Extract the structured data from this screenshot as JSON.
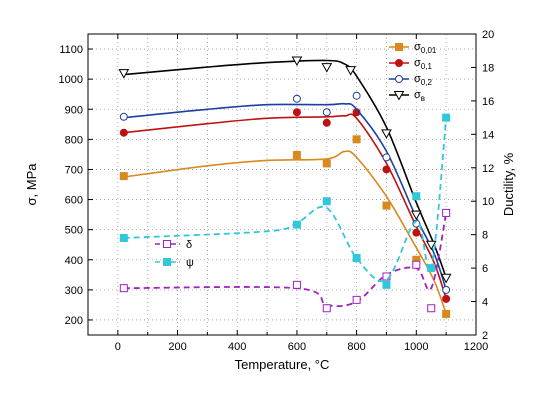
{
  "chart_data": {
    "type": "line",
    "xlabel": "Temperature, °C",
    "ylabel_left": "σ, MPa",
    "ylabel_right": "Ductility, %",
    "xlim": [
      -100,
      1200
    ],
    "ylim_left": [
      150,
      1150
    ],
    "ylim_right": [
      2,
      20
    ],
    "x_ticks": [
      0,
      200,
      400,
      600,
      800,
      1000,
      1200
    ],
    "y_left_ticks": [
      200,
      300,
      400,
      500,
      600,
      700,
      800,
      900,
      1000,
      1100
    ],
    "y_right_ticks": [
      2,
      4,
      6,
      8,
      10,
      12,
      14,
      16,
      18,
      20
    ],
    "grid": "dotted",
    "legend_upper_position": "top-right",
    "legend_lower_position": "lower-left",
    "series": [
      {
        "name": "σ",
        "sub": "0,01",
        "axis": "left",
        "color": "#d98a1f",
        "marker": "square-filled",
        "line": "solid",
        "x": [
          20,
          600,
          700,
          800,
          900,
          1000,
          1100
        ],
        "y": [
          678,
          748,
          720,
          800,
          580,
          400,
          220
        ],
        "curve": [
          [
            20,
            675
          ],
          [
            300,
            712
          ],
          [
            500,
            730
          ],
          [
            700,
            735
          ],
          [
            760,
            760
          ],
          [
            800,
            740
          ],
          [
            900,
            610
          ],
          [
            1000,
            440
          ],
          [
            1060,
            330
          ],
          [
            1100,
            220
          ]
        ]
      },
      {
        "name": "σ",
        "sub": "0,1",
        "axis": "left",
        "color": "#c01010",
        "marker": "circle-filled",
        "line": "solid",
        "x": [
          20,
          600,
          700,
          800,
          900,
          1000,
          1100
        ],
        "y": [
          822,
          890,
          855,
          890,
          700,
          490,
          270
        ],
        "curve": [
          [
            20,
            822
          ],
          [
            300,
            852
          ],
          [
            500,
            870
          ],
          [
            700,
            875
          ],
          [
            760,
            878
          ],
          [
            800,
            870
          ],
          [
            900,
            720
          ],
          [
            1000,
            510
          ],
          [
            1060,
            390
          ],
          [
            1100,
            270
          ]
        ]
      },
      {
        "name": "σ",
        "sub": "0,2",
        "axis": "left",
        "color": "#1f3fa0",
        "marker": "circle-open",
        "line": "solid",
        "x": [
          20,
          600,
          700,
          800,
          900,
          1000,
          1100
        ],
        "y": [
          875,
          935,
          890,
          945,
          740,
          520,
          300
        ],
        "curve": [
          [
            20,
            872
          ],
          [
            300,
            900
          ],
          [
            500,
            915
          ],
          [
            700,
            915
          ],
          [
            760,
            918
          ],
          [
            800,
            900
          ],
          [
            900,
            760
          ],
          [
            1000,
            540
          ],
          [
            1060,
            420
          ],
          [
            1100,
            300
          ]
        ]
      },
      {
        "name": "σ",
        "sub": "в",
        "axis": "left",
        "color": "#000000",
        "marker": "triangle-down-open",
        "line": "solid",
        "x": [
          20,
          600,
          700,
          780,
          900,
          1000,
          1050,
          1100
        ],
        "y": [
          1020,
          1062,
          1040,
          1030,
          820,
          550,
          450,
          340
        ],
        "curve": [
          [
            20,
            1015
          ],
          [
            300,
            1040
          ],
          [
            500,
            1055
          ],
          [
            700,
            1062
          ],
          [
            760,
            1050
          ],
          [
            800,
            1010
          ],
          [
            900,
            840
          ],
          [
            1000,
            590
          ],
          [
            1060,
            450
          ],
          [
            1100,
            340
          ]
        ]
      },
      {
        "name": "δ",
        "sub": "",
        "axis": "right",
        "color": "#a020c0",
        "marker": "square-open",
        "line": "dashed",
        "x": [
          20,
          600,
          700,
          800,
          900,
          1000,
          1050,
          1100
        ],
        "y": [
          4.8,
          5.0,
          3.6,
          4.1,
          5.5,
          6.2,
          3.6,
          9.3
        ],
        "curve": [
          [
            20,
            4.8
          ],
          [
            600,
            4.8
          ],
          [
            700,
            3.8
          ],
          [
            800,
            4.0
          ],
          [
            900,
            5.6
          ],
          [
            1000,
            6.0
          ],
          [
            1050,
            4.8
          ],
          [
            1100,
            9.3
          ]
        ]
      },
      {
        "name": "ψ",
        "sub": "",
        "axis": "right",
        "color": "#30c8d8",
        "marker": "square-filled",
        "line": "dashed",
        "x": [
          20,
          600,
          700,
          800,
          900,
          1000,
          1050,
          1100
        ],
        "y": [
          7.8,
          8.6,
          10.0,
          6.6,
          5.0,
          10.3,
          6.0,
          15.0
        ],
        "curve": [
          [
            20,
            7.8
          ],
          [
            500,
            8.2
          ],
          [
            600,
            8.7
          ],
          [
            700,
            9.6
          ],
          [
            800,
            6.6
          ],
          [
            900,
            5.3
          ],
          [
            1000,
            8.8
          ],
          [
            1050,
            6.0
          ],
          [
            1100,
            15.0
          ]
        ]
      }
    ]
  }
}
